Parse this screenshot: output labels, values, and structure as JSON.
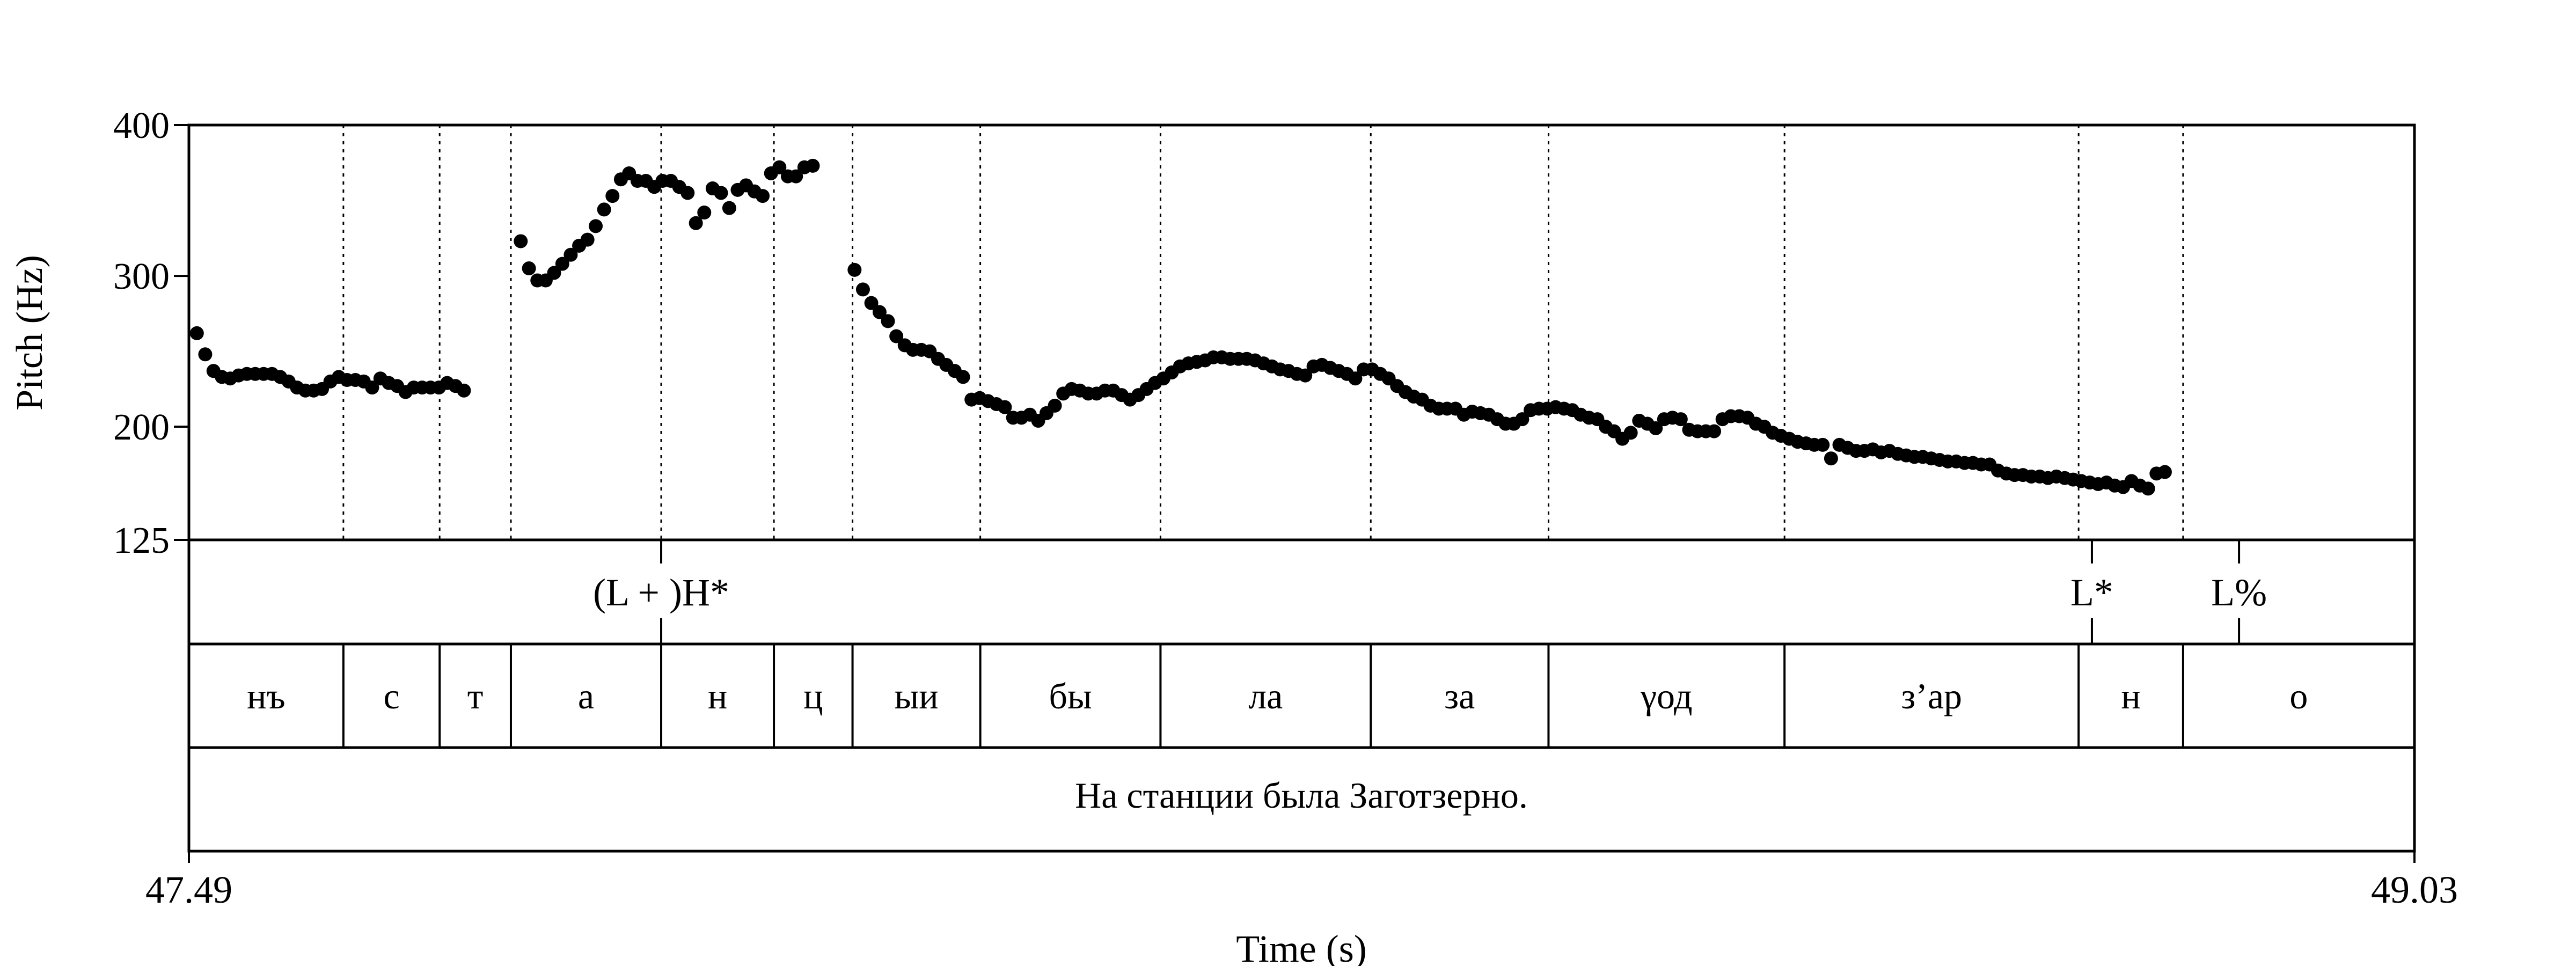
{
  "chart_data": {
    "type": "scatter",
    "ylabel": "Pitch (Hz)",
    "xlabel": "Time (s)",
    "xlim": [
      47.49,
      49.03
    ],
    "ylim": [
      125,
      400
    ],
    "y_ticks": [
      {
        "value": 125,
        "label": "125"
      },
      {
        "value": 200,
        "label": "200"
      },
      {
        "value": 300,
        "label": "300"
      },
      {
        "value": 400,
        "label": "400"
      }
    ],
    "x_ticks": [
      {
        "value": 47.49,
        "label": "47.49"
      },
      {
        "value": 49.03,
        "label": "49.03"
      }
    ],
    "grid": "vertical dotted lines at segment boundaries",
    "tones": [
      {
        "time": 47.8168,
        "label": "(L + )H*"
      },
      {
        "time": 48.8068,
        "label": "L*"
      },
      {
        "time": 48.9086,
        "label": "L%"
      }
    ],
    "segments": [
      {
        "start": 47.49,
        "end": 47.5969,
        "label": "нъ"
      },
      {
        "start": 47.5969,
        "end": 47.6635,
        "label": "с"
      },
      {
        "start": 47.6635,
        "end": 47.7128,
        "label": "т"
      },
      {
        "start": 47.7128,
        "end": 47.8168,
        "label": "а"
      },
      {
        "start": 47.8168,
        "end": 47.8948,
        "label": "н"
      },
      {
        "start": 47.8948,
        "end": 47.9492,
        "label": "ц"
      },
      {
        "start": 47.9492,
        "end": 48.0376,
        "label": "ыи"
      },
      {
        "start": 48.0376,
        "end": 48.1623,
        "label": "бы"
      },
      {
        "start": 48.1623,
        "end": 48.3078,
        "label": "ла"
      },
      {
        "start": 48.3078,
        "end": 48.4308,
        "label": "за"
      },
      {
        "start": 48.4308,
        "end": 48.5941,
        "label": "γод"
      },
      {
        "start": 48.5941,
        "end": 48.7976,
        "label": "з’ар"
      },
      {
        "start": 48.7976,
        "end": 48.8699,
        "label": "н"
      },
      {
        "start": 48.8699,
        "end": 49.03,
        "label": "о"
      }
    ],
    "sentence": "На станции была Заготзерно.",
    "series": [
      {
        "points": [
          [
            47.4955,
            262
          ],
          [
            47.5013,
            248
          ],
          [
            47.507,
            237
          ],
          [
            47.5128,
            233
          ],
          [
            47.5186,
            232
          ],
          [
            47.5244,
            234
          ],
          [
            47.5301,
            235
          ],
          [
            47.5359,
            235
          ],
          [
            47.5417,
            235
          ],
          [
            47.5475,
            235
          ],
          [
            47.5532,
            233
          ],
          [
            47.559,
            230
          ],
          [
            47.5648,
            226
          ],
          [
            47.5706,
            224
          ],
          [
            47.5763,
            224
          ],
          [
            47.5821,
            225
          ],
          [
            47.5879,
            230
          ],
          [
            47.5937,
            233
          ],
          [
            47.5994,
            231
          ],
          [
            47.6052,
            231
          ],
          [
            47.611,
            230
          ],
          [
            47.6168,
            226
          ],
          [
            47.6225,
            232
          ],
          [
            47.6283,
            229
          ],
          [
            47.6341,
            227
          ],
          [
            47.6399,
            223
          ],
          [
            47.6456,
            226
          ],
          [
            47.6514,
            226
          ],
          [
            47.6572,
            226
          ],
          [
            47.663,
            226
          ],
          [
            47.6687,
            229
          ],
          [
            47.6745,
            227
          ],
          [
            47.6803,
            224
          ],
          [
            47.7196,
            323
          ],
          [
            47.7253,
            305
          ],
          [
            47.7311,
            297
          ],
          [
            47.7369,
            297
          ],
          [
            47.7427,
            302
          ],
          [
            47.7484,
            308
          ],
          [
            47.7542,
            314
          ],
          [
            47.76,
            320
          ],
          [
            47.7658,
            324
          ],
          [
            47.7715,
            333
          ],
          [
            47.7773,
            344
          ],
          [
            47.7831,
            353
          ],
          [
            47.7889,
            364
          ],
          [
            47.7946,
            368
          ],
          [
            47.8004,
            363
          ],
          [
            47.8062,
            363
          ],
          [
            47.812,
            359
          ],
          [
            47.8177,
            363
          ],
          [
            47.8235,
            363
          ],
          [
            47.8293,
            359
          ],
          [
            47.8351,
            355
          ],
          [
            47.8408,
            335
          ],
          [
            47.8466,
            342
          ],
          [
            47.8524,
            358
          ],
          [
            47.8582,
            355
          ],
          [
            47.8639,
            345
          ],
          [
            47.8697,
            357
          ],
          [
            47.8755,
            360
          ],
          [
            47.8813,
            356
          ],
          [
            47.887,
            353
          ],
          [
            47.8928,
            368
          ],
          [
            47.8986,
            372
          ],
          [
            47.9044,
            366
          ],
          [
            47.9101,
            366
          ],
          [
            47.9159,
            372
          ],
          [
            47.9217,
            373
          ],
          [
            47.9506,
            304
          ],
          [
            47.9564,
            291
          ],
          [
            47.9622,
            282
          ],
          [
            47.9679,
            276
          ],
          [
            47.9737,
            270
          ],
          [
            47.9795,
            260
          ],
          [
            47.9853,
            254
          ],
          [
            47.991,
            251
          ],
          [
            47.9968,
            251
          ],
          [
            48.0026,
            250
          ],
          [
            48.0084,
            245
          ],
          [
            48.0141,
            241
          ],
          [
            48.0199,
            237
          ],
          [
            48.0257,
            233
          ],
          [
            48.0315,
            218
          ],
          [
            48.0372,
            219
          ],
          [
            48.043,
            217
          ],
          [
            48.0488,
            215
          ],
          [
            48.0546,
            213
          ],
          [
            48.0603,
            206
          ],
          [
            48.0661,
            206
          ],
          [
            48.0719,
            208
          ],
          [
            48.0777,
            204
          ],
          [
            48.0834,
            209
          ],
          [
            48.0892,
            214
          ],
          [
            48.095,
            222
          ],
          [
            48.1008,
            225
          ],
          [
            48.1065,
            224
          ],
          [
            48.1123,
            222
          ],
          [
            48.1181,
            222
          ],
          [
            48.1239,
            224
          ],
          [
            48.1296,
            224
          ],
          [
            48.1354,
            221
          ],
          [
            48.1412,
            218
          ],
          [
            48.147,
            221
          ],
          [
            48.1527,
            225
          ],
          [
            48.1585,
            229
          ],
          [
            48.1643,
            232
          ],
          [
            48.1701,
            236
          ],
          [
            48.1758,
            240
          ],
          [
            48.1816,
            242
          ],
          [
            48.1874,
            243
          ],
          [
            48.1932,
            244
          ],
          [
            48.1989,
            246
          ],
          [
            48.2047,
            246
          ],
          [
            48.2105,
            245
          ],
          [
            48.2163,
            245
          ],
          [
            48.222,
            245
          ],
          [
            48.2278,
            244
          ],
          [
            48.2336,
            242
          ],
          [
            48.2394,
            240
          ],
          [
            48.2451,
            238
          ],
          [
            48.2509,
            237
          ],
          [
            48.2567,
            235
          ],
          [
            48.2625,
            234
          ],
          [
            48.2682,
            240
          ],
          [
            48.274,
            241
          ],
          [
            48.2798,
            239
          ],
          [
            48.2856,
            237
          ],
          [
            48.2913,
            235
          ],
          [
            48.2971,
            232
          ],
          [
            48.3029,
            238
          ],
          [
            48.3087,
            238
          ],
          [
            48.3144,
            235
          ],
          [
            48.3202,
            232
          ],
          [
            48.326,
            227
          ],
          [
            48.3318,
            223
          ],
          [
            48.3375,
            220
          ],
          [
            48.3433,
            218
          ],
          [
            48.3491,
            214
          ],
          [
            48.3549,
            212
          ],
          [
            48.3606,
            212
          ],
          [
            48.3664,
            212
          ],
          [
            48.3722,
            208
          ],
          [
            48.378,
            210
          ],
          [
            48.3837,
            209
          ],
          [
            48.3895,
            208
          ],
          [
            48.3953,
            205
          ],
          [
            48.4011,
            202
          ],
          [
            48.4068,
            202
          ],
          [
            48.4126,
            205
          ],
          [
            48.4184,
            211
          ],
          [
            48.4242,
            212
          ],
          [
            48.4299,
            212
          ],
          [
            48.4357,
            213
          ],
          [
            48.4415,
            212
          ],
          [
            48.4473,
            211
          ],
          [
            48.453,
            208
          ],
          [
            48.4588,
            206
          ],
          [
            48.4646,
            205
          ],
          [
            48.4704,
            200
          ],
          [
            48.4761,
            197
          ],
          [
            48.4819,
            192
          ],
          [
            48.4877,
            196
          ],
          [
            48.4935,
            204
          ],
          [
            48.4992,
            202
          ],
          [
            48.505,
            199
          ],
          [
            48.5108,
            205
          ],
          [
            48.5166,
            206
          ],
          [
            48.5223,
            205
          ],
          [
            48.5281,
            198
          ],
          [
            48.5339,
            197
          ],
          [
            48.5397,
            197
          ],
          [
            48.5454,
            197
          ],
          [
            48.5512,
            205
          ],
          [
            48.557,
            207
          ],
          [
            48.5628,
            207
          ],
          [
            48.5685,
            206
          ],
          [
            48.5743,
            202
          ],
          [
            48.5801,
            200
          ],
          [
            48.5859,
            196
          ],
          [
            48.5916,
            194
          ],
          [
            48.5974,
            192
          ],
          [
            48.6032,
            190
          ],
          [
            48.609,
            189
          ],
          [
            48.6147,
            188
          ],
          [
            48.6205,
            188
          ],
          [
            48.6263,
            179
          ],
          [
            48.6321,
            188
          ],
          [
            48.6378,
            186
          ],
          [
            48.6436,
            184
          ],
          [
            48.6494,
            184
          ],
          [
            48.6552,
            185
          ],
          [
            48.6609,
            183
          ],
          [
            48.6667,
            184
          ],
          [
            48.6725,
            182
          ],
          [
            48.6783,
            181
          ],
          [
            48.684,
            180
          ],
          [
            48.6898,
            180
          ],
          [
            48.6956,
            179
          ],
          [
            48.7014,
            178
          ],
          [
            48.7071,
            177
          ],
          [
            48.7129,
            177
          ],
          [
            48.7187,
            176
          ],
          [
            48.7245,
            176
          ],
          [
            48.7302,
            175
          ],
          [
            48.736,
            175
          ],
          [
            48.7418,
            171
          ],
          [
            48.7476,
            169
          ],
          [
            48.7533,
            168
          ],
          [
            48.7591,
            168
          ],
          [
            48.7649,
            167
          ],
          [
            48.7707,
            167
          ],
          [
            48.7764,
            166
          ],
          [
            48.7822,
            167
          ],
          [
            48.788,
            166
          ],
          [
            48.7938,
            165
          ],
          [
            48.7995,
            164
          ],
          [
            48.8053,
            163
          ],
          [
            48.8111,
            162
          ],
          [
            48.8169,
            163
          ],
          [
            48.8226,
            161
          ],
          [
            48.8284,
            160
          ],
          [
            48.8342,
            164
          ],
          [
            48.84,
            161
          ],
          [
            48.8457,
            159
          ],
          [
            48.8515,
            169
          ],
          [
            48.8573,
            170
          ]
        ]
      }
    ]
  }
}
